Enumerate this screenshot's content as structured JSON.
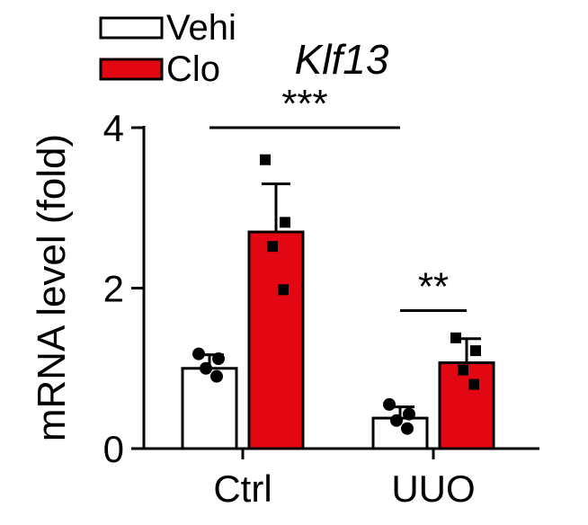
{
  "chart_data": {
    "type": "bar",
    "title": "Klf13",
    "ylabel": "mRNA level (fold)",
    "xlabel": "",
    "ylim": [
      0,
      4
    ],
    "yticks": [
      0,
      2,
      4
    ],
    "categories": [
      "Ctrl",
      "UUO"
    ],
    "series": [
      {
        "name": "Vehi",
        "color": "#ffffff",
        "values": [
          1.0,
          0.38
        ],
        "errors": [
          0.17,
          0.14
        ],
        "points": [
          [
            1.18,
            1.12,
            1.0,
            0.9
          ],
          [
            0.55,
            0.43,
            0.35,
            0.25
          ]
        ],
        "marker": "circle"
      },
      {
        "name": "Clo",
        "color": "#e30613",
        "values": [
          2.7,
          1.07
        ],
        "errors": [
          0.6,
          0.3
        ],
        "points": [
          [
            3.6,
            2.82,
            2.52,
            1.98
          ],
          [
            1.38,
            1.22,
            0.98,
            0.8
          ]
        ],
        "marker": "square"
      }
    ],
    "annotations": [
      {
        "label": "***",
        "from": [
          0,
          0
        ],
        "to": [
          1,
          0
        ],
        "y": 4.0
      },
      {
        "label": "**",
        "from": [
          1,
          0
        ],
        "to": [
          1,
          1
        ],
        "y": 1.72
      }
    ],
    "legend": "top-left"
  }
}
